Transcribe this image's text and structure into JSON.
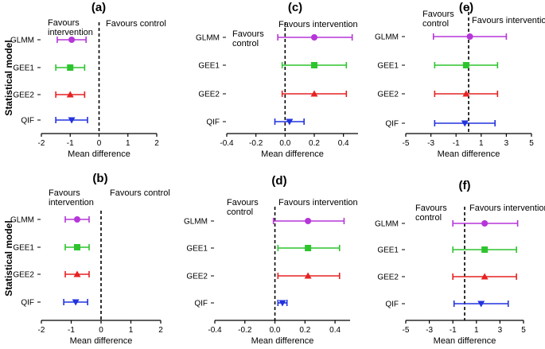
{
  "figure": {
    "ylabel": "Statistical model",
    "colors": {
      "GLMM": "#b536d9",
      "GEE1": "#2ec42e",
      "GEE2": "#e62222",
      "QIF": "#2233dd"
    },
    "markers": {
      "GLMM": "circle",
      "GEE1": "square",
      "GEE2": "triangle-up",
      "QIF": "triangle-down"
    }
  },
  "chart_data": [
    {
      "id": "a",
      "type": "forest",
      "label": "(a)",
      "title": "",
      "xlabel": "Mean difference",
      "xlim": [
        -2,
        2
      ],
      "xticks": [
        -2,
        -1,
        0,
        1,
        2
      ],
      "left_annotation": [
        "Favours",
        "intervention"
      ],
      "right_annotation": [
        "Favours control"
      ],
      "reference_line": 0,
      "series": [
        {
          "model": "GLMM",
          "estimate": -0.95,
          "lower": -1.45,
          "upper": -0.45
        },
        {
          "model": "GEE1",
          "estimate": -1.0,
          "lower": -1.5,
          "upper": -0.5
        },
        {
          "model": "GEE2",
          "estimate": -1.0,
          "lower": -1.5,
          "upper": -0.5
        },
        {
          "model": "QIF",
          "estimate": -0.95,
          "lower": -1.5,
          "upper": -0.4
        }
      ]
    },
    {
      "id": "c",
      "type": "forest",
      "label": "(c)",
      "title": "",
      "xlabel": "Mean difference",
      "xlim": [
        -0.4,
        0.5
      ],
      "xticks": [
        -0.4,
        -0.2,
        0.0,
        0.2,
        0.4
      ],
      "left_annotation": [
        "Favours",
        "control"
      ],
      "right_annotation": [
        "Favours intervention"
      ],
      "reference_line": 0,
      "series": [
        {
          "model": "GLMM",
          "estimate": 0.2,
          "lower": -0.05,
          "upper": 0.46
        },
        {
          "model": "GEE1",
          "estimate": 0.2,
          "lower": -0.02,
          "upper": 0.42
        },
        {
          "model": "GEE2",
          "estimate": 0.2,
          "lower": -0.02,
          "upper": 0.42
        },
        {
          "model": "QIF",
          "estimate": 0.03,
          "lower": -0.07,
          "upper": 0.13
        }
      ]
    },
    {
      "id": "e",
      "type": "forest",
      "label": "(e)",
      "title": "",
      "xlabel": "Mean difference",
      "xlim": [
        -5,
        5
      ],
      "xticks": [
        -5,
        -3,
        -1,
        1,
        3,
        5
      ],
      "left_annotation": [
        "Favours",
        "control"
      ],
      "right_annotation": [
        "Favours intervention"
      ],
      "reference_line": 0,
      "series": [
        {
          "model": "GLMM",
          "estimate": 0.1,
          "lower": -2.8,
          "upper": 3.0
        },
        {
          "model": "GEE1",
          "estimate": -0.2,
          "lower": -2.7,
          "upper": 2.3
        },
        {
          "model": "GEE2",
          "estimate": -0.2,
          "lower": -2.7,
          "upper": 2.3
        },
        {
          "model": "QIF",
          "estimate": -0.3,
          "lower": -2.7,
          "upper": 2.1
        }
      ]
    },
    {
      "id": "b",
      "type": "forest",
      "label": "(b)",
      "title": "",
      "xlabel": "Mean difference",
      "xlim": [
        -2,
        2
      ],
      "xticks": [
        -2,
        -1,
        0,
        1,
        2
      ],
      "left_annotation": [
        "Favours",
        "intervention"
      ],
      "right_annotation": [
        "Favours control"
      ],
      "reference_line": 0,
      "series": [
        {
          "model": "GLMM",
          "estimate": -0.8,
          "lower": -1.2,
          "upper": -0.4
        },
        {
          "model": "GEE1",
          "estimate": -0.8,
          "lower": -1.2,
          "upper": -0.4
        },
        {
          "model": "GEE2",
          "estimate": -0.8,
          "lower": -1.2,
          "upper": -0.4
        },
        {
          "model": "QIF",
          "estimate": -0.85,
          "lower": -1.25,
          "upper": -0.45
        }
      ]
    },
    {
      "id": "d",
      "type": "forest",
      "label": "(d)",
      "title": "",
      "xlabel": "Mean difference",
      "xlim": [
        -0.4,
        0.5
      ],
      "xticks": [
        -0.4,
        -0.2,
        0.0,
        0.2,
        0.4
      ],
      "left_annotation": [
        "Favours",
        "control"
      ],
      "right_annotation": [
        "Favours intervention"
      ],
      "reference_line": 0,
      "series": [
        {
          "model": "GLMM",
          "estimate": 0.22,
          "lower": -0.01,
          "upper": 0.46
        },
        {
          "model": "GEE1",
          "estimate": 0.22,
          "lower": 0.02,
          "upper": 0.43
        },
        {
          "model": "GEE2",
          "estimate": 0.22,
          "lower": 0.02,
          "upper": 0.43
        },
        {
          "model": "QIF",
          "estimate": 0.05,
          "lower": 0.02,
          "upper": 0.08
        }
      ]
    },
    {
      "id": "f",
      "type": "forest",
      "label": "(f)",
      "title": "",
      "xlabel": "Mean difference",
      "xlim": [
        -5,
        5
      ],
      "xticks": [
        -5,
        -3,
        -1,
        1,
        3,
        5
      ],
      "left_annotation": [
        "Favours",
        "control"
      ],
      "right_annotation": [
        "Favours intervention"
      ],
      "reference_line": 0,
      "series": [
        {
          "model": "GLMM",
          "estimate": 1.7,
          "lower": -1.0,
          "upper": 4.5
        },
        {
          "model": "GEE1",
          "estimate": 1.7,
          "lower": -1.0,
          "upper": 4.4
        },
        {
          "model": "GEE2",
          "estimate": 1.7,
          "lower": -1.0,
          "upper": 4.4
        },
        {
          "model": "QIF",
          "estimate": 1.4,
          "lower": -0.9,
          "upper": 3.7
        }
      ]
    }
  ]
}
